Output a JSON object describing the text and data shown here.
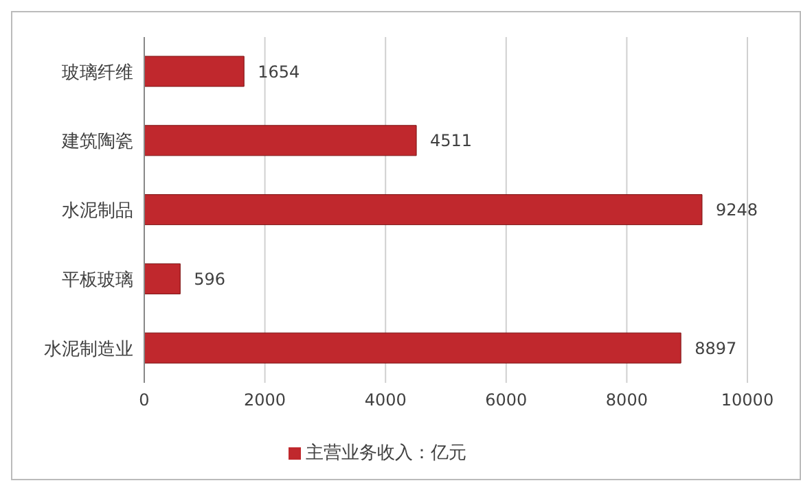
{
  "chart_data": {
    "type": "bar",
    "orientation": "horizontal",
    "categories": [
      "玻璃纤维",
      "建筑陶瓷",
      "水泥制品",
      "平板玻璃",
      "水泥制造业"
    ],
    "series": [
      {
        "name": "主营业务收入：亿元",
        "color": "#c0282d",
        "values": [
          1654,
          4511,
          9248,
          596,
          8897
        ]
      }
    ],
    "xlim": [
      0,
      10000
    ],
    "xticks": [
      0,
      2000,
      4000,
      6000,
      8000,
      10000
    ],
    "grid": "x",
    "legend": "bottom",
    "data_labels": true
  }
}
